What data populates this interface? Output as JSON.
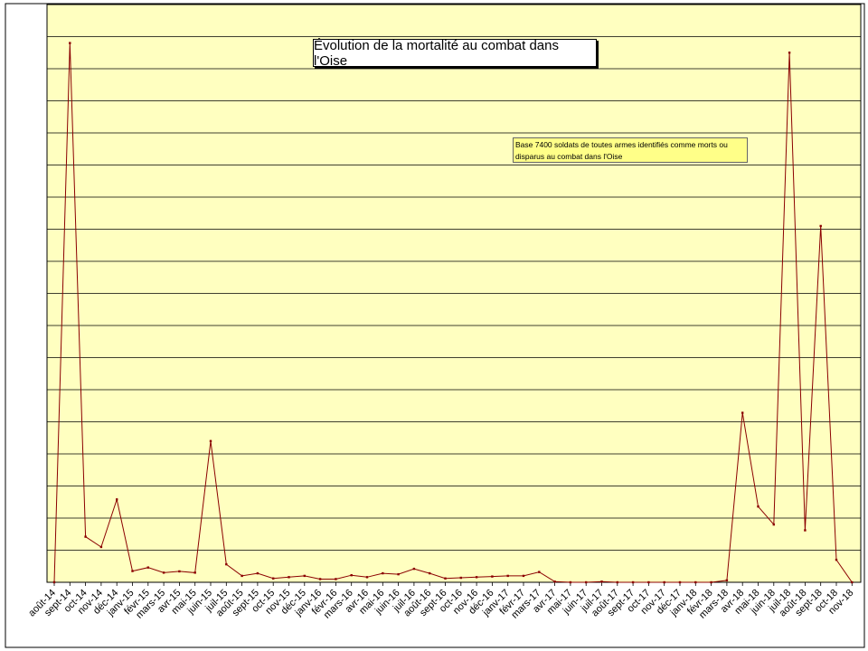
{
  "chart_data": {
    "type": "line",
    "title": "Évolution de la mortalité au combat dans l'Oise",
    "annotation": "Base 7400 soldats de toutes armes identifiés comme morts ou disparus au combat dans l'Oise",
    "categories": [
      "août-14",
      "sept-14",
      "oct-14",
      "nov-14",
      "déc-14",
      "janv-15",
      "févr-15",
      "mars-15",
      "avr-15",
      "mai-15",
      "juin-15",
      "juil-15",
      "août-15",
      "sept-15",
      "oct-15",
      "nov-15",
      "déc-15",
      "janv-16",
      "févr-16",
      "mars-16",
      "avr-16",
      "mai-16",
      "juin-16",
      "juil-16",
      "août-16",
      "sept-16",
      "oct-16",
      "nov-16",
      "déc-16",
      "janv-17",
      "févr-17",
      "mars-17",
      "avr-17",
      "mai-17",
      "juin-17",
      "juil-17",
      "août-17",
      "sept-17",
      "oct-17",
      "nov-17",
      "déc-17",
      "janv-18",
      "févr-18",
      "mars-18",
      "avr-18",
      "mai-18",
      "juin-18",
      "juil-18",
      "août-18",
      "sept-18",
      "oct-18",
      "nov-18"
    ],
    "series": [
      {
        "values": [
          0,
          1680,
          142,
          110,
          258,
          35,
          46,
          30,
          34,
          30,
          440,
          56,
          20,
          28,
          12,
          16,
          20,
          10,
          10,
          22,
          16,
          28,
          25,
          42,
          28,
          12,
          14,
          16,
          18,
          20,
          20,
          32,
          2,
          0,
          0,
          2,
          0,
          0,
          0,
          0,
          0,
          0,
          0,
          6,
          528,
          236,
          180,
          1650,
          162,
          1110,
          70,
          0
        ]
      }
    ],
    "xlabel": "",
    "ylabel": "",
    "ylim": [
      0,
      1800
    ],
    "grid": true,
    "legend": "none",
    "colors": {
      "plot_bg": "#ffffc0",
      "line": "#8b0000",
      "grid": "#000000"
    }
  }
}
